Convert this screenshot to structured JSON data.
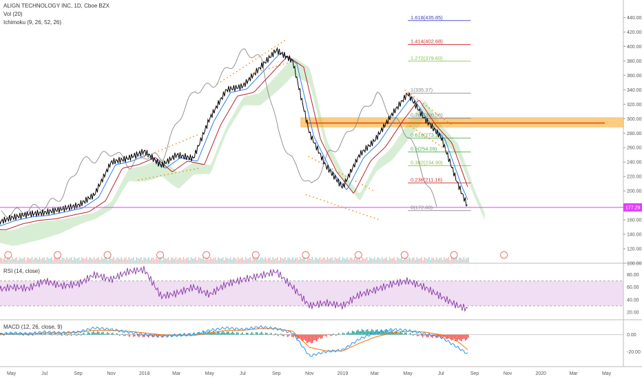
{
  "header": {
    "title": "ALIGN TECHNOLOGY INC, 1D, Cboe BZX",
    "vol": "Vol (20)",
    "ichimoku": "Ichimoku (9, 26, 52, 26)"
  },
  "rsi_panel": {
    "label": "RSI (14, close)"
  },
  "macd_panel": {
    "label": "MACD (12, 26, close, 9)"
  },
  "colors": {
    "price": "#000000",
    "ichimoku_up": "#a6d9a0",
    "ichimoku_down": "#f0b4b4",
    "tenkan": "#2f7cf6",
    "kijun": "#b5222e",
    "lagging": "#888888",
    "resistance_zone": "#f7a31b",
    "current_line": "#e040fb",
    "rsi": "#8e44ad",
    "macd": "#2196f3",
    "signal": "#ff6d00",
    "hist_up": "#26a69a",
    "hist_down": "#ef5350",
    "trend_dots": "#f57c00"
  },
  "chart_data": {
    "type": "line",
    "price": {
      "x": [
        "2017-04-01",
        "2017-05-01",
        "2017-06-01",
        "2017-07-01",
        "2017-08-01",
        "2017-09-01",
        "2017-10-01",
        "2017-11-01",
        "2017-12-01",
        "2018-01-01",
        "2018-02-01",
        "2018-03-01",
        "2018-04-01",
        "2018-05-01",
        "2018-06-01",
        "2018-07-01",
        "2018-08-01",
        "2018-09-01",
        "2018-10-01",
        "2018-11-01",
        "2018-12-01",
        "2019-01-01",
        "2019-02-01",
        "2019-03-01",
        "2019-04-01",
        "2019-05-01",
        "2019-06-01",
        "2019-07-01",
        "2019-08-01",
        "2019-08-20"
      ],
      "y": [
        155,
        163,
        168,
        170,
        175,
        180,
        195,
        240,
        245,
        255,
        235,
        250,
        245,
        300,
        340,
        345,
        370,
        395,
        380,
        280,
        235,
        205,
        250,
        270,
        305,
        335,
        300,
        275,
        210,
        177.29
      ]
    },
    "y_axis": {
      "range": [
        100,
        450
      ],
      "ticks": [
        "440.00",
        "420.00",
        "400.00",
        "380.00",
        "360.00",
        "340.00",
        "320.00",
        "300.00",
        "280.00",
        "260.00",
        "240.00",
        "220.00",
        "200.00",
        "180.00",
        "160.00",
        "140.00",
        "120.00",
        "100.00"
      ]
    },
    "x_axis": {
      "ticks": [
        "May",
        "Jul",
        "Sep",
        "Nov",
        "2018",
        "Mar",
        "May",
        "Jul",
        "Sep",
        "Nov",
        "2019",
        "Mar",
        "May",
        "Jul",
        "Sep",
        "Nov",
        "2020",
        "Mar",
        "May"
      ]
    },
    "current_price": "177.29",
    "fib_levels": [
      {
        "label": "1.618(435.85)",
        "value": 435.85,
        "color": "#3f3fbf"
      },
      {
        "label": "1.414(402.68)",
        "value": 402.68,
        "color": "#d32f2f"
      },
      {
        "label": "1.272(379.60)",
        "value": 379.6,
        "color": "#8bc34a"
      },
      {
        "label": "1(335.37)",
        "value": 335.37,
        "color": "#888888"
      },
      {
        "label": "0.786(300.56)",
        "value": 300.56,
        "color": "#888888"
      },
      {
        "label": "0.618(273.27)",
        "value": 273.27,
        "color": "#4caf50"
      },
      {
        "label": "0.5(254.09)",
        "value": 254.09,
        "color": "#4caf50"
      },
      {
        "label": "0.382(234.90)",
        "value": 234.9,
        "color": "#8bc34a"
      },
      {
        "label": "0.236(211.16)",
        "value": 211.16,
        "color": "#d32f2f"
      },
      {
        "label": "0(172.80)",
        "value": 172.8,
        "color": "#888888"
      }
    ],
    "resistance_zone": [
      288,
      302
    ],
    "rsi": {
      "range": [
        10,
        95
      ],
      "ticks": [
        "80.00",
        "60.00",
        "40.00",
        "20.00"
      ],
      "band": [
        30,
        70
      ],
      "values": [
        55,
        60,
        58,
        70,
        62,
        65,
        80,
        72,
        85,
        88,
        45,
        50,
        60,
        48,
        65,
        72,
        78,
        85,
        60,
        30,
        35,
        30,
        48,
        55,
        65,
        70,
        60,
        45,
        30,
        25
      ]
    },
    "macd": {
      "range": [
        -35,
        15
      ],
      "ticks": [
        "0.00",
        "-20.00"
      ],
      "macd": [
        0,
        2,
        1,
        3,
        2,
        3,
        8,
        6,
        3,
        0,
        -2,
        -1,
        0,
        5,
        8,
        6,
        9,
        7,
        2,
        -25,
        -20,
        -18,
        -5,
        2,
        6,
        5,
        1,
        -3,
        -15,
        -23
      ],
      "signal": [
        0,
        1,
        1,
        2,
        2,
        3,
        5,
        5,
        4,
        2,
        0,
        -1,
        -1,
        2,
        5,
        5,
        7,
        7,
        4,
        -15,
        -19,
        -19,
        -10,
        -3,
        2,
        4,
        3,
        0,
        -8,
        -18
      ]
    }
  }
}
